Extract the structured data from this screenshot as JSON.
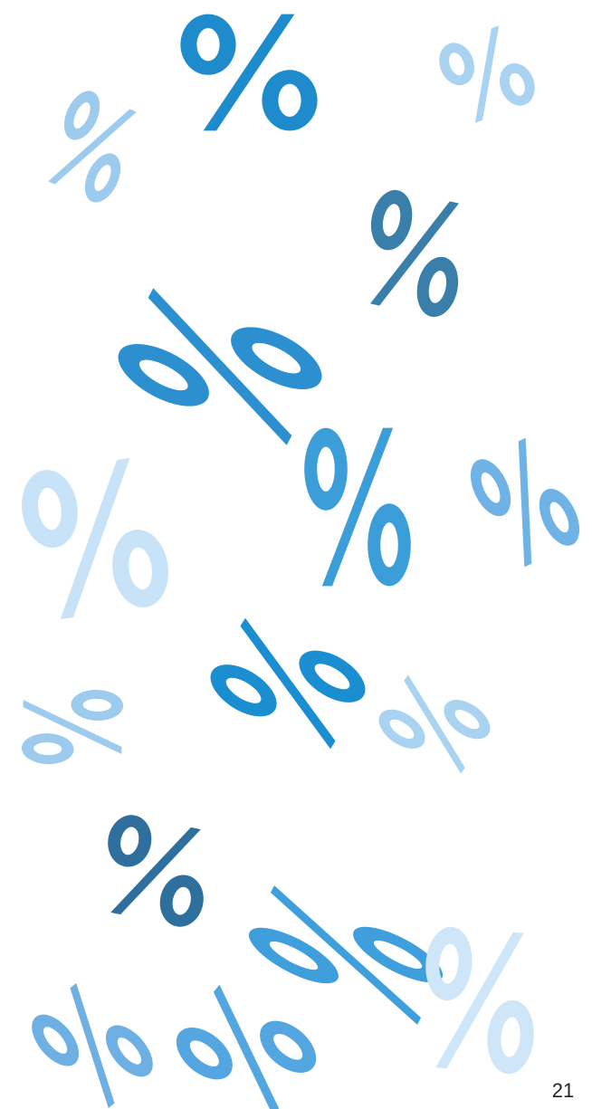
{
  "page": {
    "number": "21"
  }
}
